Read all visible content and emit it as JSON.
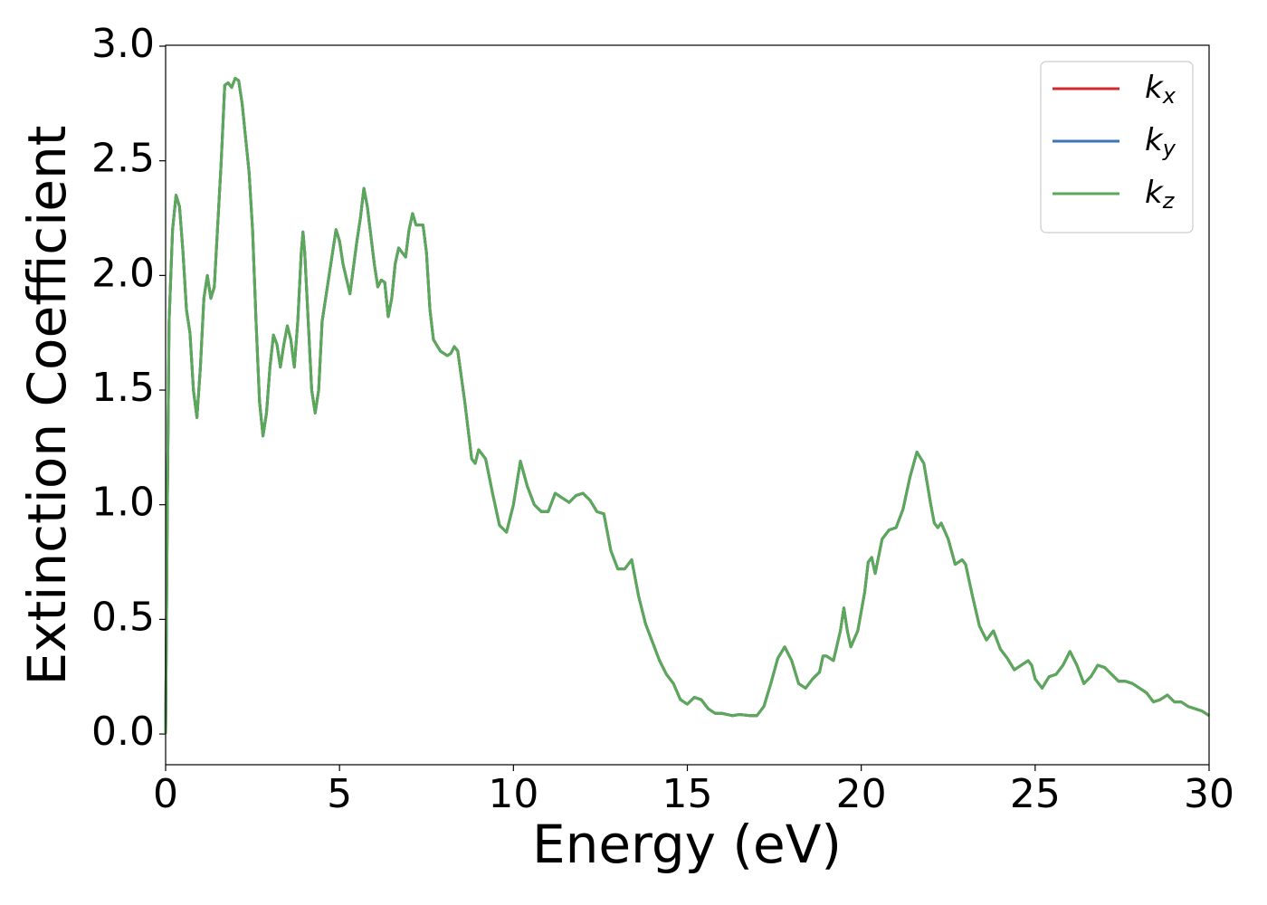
{
  "chart_data": {
    "type": "line",
    "xlabel": "Energy (eV)",
    "ylabel": "Extinction Coefficient",
    "xlim": [
      0,
      30
    ],
    "ylim": [
      -0.134,
      3.004
    ],
    "xticks": [
      0,
      5,
      10,
      15,
      20,
      25,
      30
    ],
    "yticks": [
      {
        "value": 0,
        "label": "0.0"
      },
      0.5,
      {
        "value": 1,
        "label": "1.0"
      },
      1.5,
      {
        "value": 2,
        "label": "2.0"
      },
      2.5,
      {
        "value": 3,
        "label": "3.0"
      }
    ],
    "legend": "upper right",
    "x": [
      0,
      0.05,
      0.1,
      0.2,
      0.3,
      0.4,
      0.5,
      0.6,
      0.7,
      0.8,
      0.9,
      1.0,
      1.1,
      1.2,
      1.3,
      1.4,
      1.6,
      1.7,
      1.8,
      1.9,
      2.0,
      2.1,
      2.2,
      2.4,
      2.5,
      2.6,
      2.7,
      2.8,
      2.9,
      3.0,
      3.1,
      3.2,
      3.3,
      3.4,
      3.5,
      3.6,
      3.7,
      3.8,
      3.9,
      3.95,
      4.0,
      4.1,
      4.2,
      4.3,
      4.4,
      4.5,
      4.7,
      4.9,
      5.0,
      5.1,
      5.3,
      5.5,
      5.6,
      5.7,
      5.8,
      6.0,
      6.1,
      6.2,
      6.3,
      6.4,
      6.5,
      6.6,
      6.7,
      6.8,
      6.9,
      7.0,
      7.1,
      7.2,
      7.4,
      7.5,
      7.6,
      7.7,
      7.9,
      8.1,
      8.2,
      8.3,
      8.4,
      8.6,
      8.8,
      8.9,
      9.0,
      9.2,
      9.4,
      9.6,
      9.8,
      10.0,
      10.2,
      10.4,
      10.6,
      10.8,
      11.0,
      11.2,
      11.4,
      11.6,
      11.8,
      12.0,
      12.2,
      12.4,
      12.6,
      12.8,
      13.0,
      13.2,
      13.4,
      13.6,
      13.8,
      14.0,
      14.2,
      14.4,
      14.6,
      14.8,
      15.0,
      15.2,
      15.4,
      15.6,
      15.8,
      16.0,
      16.3,
      16.5,
      16.8,
      17.0,
      17.2,
      17.4,
      17.6,
      17.8,
      18.0,
      18.2,
      18.4,
      18.6,
      18.8,
      18.9,
      19.0,
      19.2,
      19.4,
      19.5,
      19.6,
      19.7,
      19.9,
      20.1,
      20.2,
      20.3,
      20.4,
      20.6,
      20.8,
      21.0,
      21.2,
      21.4,
      21.6,
      21.8,
      22.0,
      22.1,
      22.2,
      22.3,
      22.5,
      22.7,
      22.9,
      23.0,
      23.2,
      23.4,
      23.6,
      23.8,
      24.0,
      24.2,
      24.4,
      24.6,
      24.8,
      24.9,
      25.0,
      25.2,
      25.4,
      25.6,
      25.8,
      26.0,
      26.2,
      26.4,
      26.6,
      26.8,
      27.0,
      27.2,
      27.4,
      27.6,
      27.8,
      28.0,
      28.2,
      28.4,
      28.6,
      28.8,
      29.0,
      29.2,
      29.4,
      29.6,
      29.8,
      30.0
    ],
    "series": [
      {
        "name": "kx",
        "color": "#d62728",
        "values": [
          0,
          1.0,
          1.8,
          2.2,
          2.35,
          2.3,
          2.1,
          1.85,
          1.75,
          1.5,
          1.38,
          1.6,
          1.9,
          2.0,
          1.9,
          1.95,
          2.5,
          2.83,
          2.84,
          2.82,
          2.86,
          2.85,
          2.75,
          2.45,
          2.2,
          1.8,
          1.45,
          1.3,
          1.4,
          1.6,
          1.74,
          1.7,
          1.6,
          1.7,
          1.78,
          1.72,
          1.6,
          1.8,
          2.1,
          2.19,
          2.1,
          1.8,
          1.5,
          1.4,
          1.5,
          1.8,
          2.0,
          2.2,
          2.15,
          2.05,
          1.92,
          2.15,
          2.25,
          2.38,
          2.3,
          2.05,
          1.95,
          1.98,
          1.97,
          1.82,
          1.9,
          2.05,
          2.12,
          2.1,
          2.08,
          2.2,
          2.27,
          2.22,
          2.22,
          2.1,
          1.85,
          1.72,
          1.67,
          1.65,
          1.66,
          1.69,
          1.67,
          1.45,
          1.2,
          1.18,
          1.24,
          1.2,
          1.05,
          0.91,
          0.88,
          1.0,
          1.19,
          1.08,
          1.0,
          0.97,
          0.97,
          1.05,
          1.03,
          1.01,
          1.04,
          1.05,
          1.02,
          0.97,
          0.96,
          0.8,
          0.72,
          0.72,
          0.76,
          0.6,
          0.48,
          0.4,
          0.32,
          0.26,
          0.22,
          0.15,
          0.13,
          0.16,
          0.15,
          0.11,
          0.09,
          0.09,
          0.08,
          0.085,
          0.08,
          0.08,
          0.12,
          0.22,
          0.33,
          0.38,
          0.32,
          0.22,
          0.2,
          0.24,
          0.27,
          0.34,
          0.34,
          0.32,
          0.45,
          0.55,
          0.45,
          0.38,
          0.45,
          0.62,
          0.75,
          0.77,
          0.7,
          0.85,
          0.89,
          0.9,
          0.98,
          1.12,
          1.23,
          1.18,
          1.0,
          0.92,
          0.9,
          0.92,
          0.85,
          0.74,
          0.76,
          0.74,
          0.6,
          0.47,
          0.41,
          0.45,
          0.37,
          0.33,
          0.28,
          0.3,
          0.32,
          0.3,
          0.24,
          0.2,
          0.25,
          0.26,
          0.3,
          0.36,
          0.3,
          0.22,
          0.25,
          0.3,
          0.29,
          0.26,
          0.23,
          0.23,
          0.22,
          0.2,
          0.18,
          0.14,
          0.15,
          0.17,
          0.14,
          0.14,
          0.12,
          0.11,
          0.1,
          0.08
        ]
      },
      {
        "name": "ky",
        "color": "#3b75af",
        "values": [
          0,
          1.0,
          1.8,
          2.2,
          2.35,
          2.3,
          2.1,
          1.85,
          1.75,
          1.5,
          1.38,
          1.6,
          1.9,
          2.0,
          1.9,
          1.95,
          2.5,
          2.83,
          2.84,
          2.82,
          2.86,
          2.85,
          2.75,
          2.45,
          2.2,
          1.8,
          1.45,
          1.3,
          1.4,
          1.6,
          1.74,
          1.7,
          1.6,
          1.7,
          1.78,
          1.72,
          1.6,
          1.8,
          2.1,
          2.19,
          2.1,
          1.8,
          1.5,
          1.4,
          1.5,
          1.8,
          2.0,
          2.2,
          2.15,
          2.05,
          1.92,
          2.15,
          2.25,
          2.38,
          2.3,
          2.05,
          1.95,
          1.98,
          1.97,
          1.82,
          1.9,
          2.05,
          2.12,
          2.1,
          2.08,
          2.2,
          2.27,
          2.22,
          2.22,
          2.1,
          1.85,
          1.72,
          1.67,
          1.65,
          1.66,
          1.69,
          1.67,
          1.45,
          1.2,
          1.18,
          1.24,
          1.2,
          1.05,
          0.91,
          0.88,
          1.0,
          1.19,
          1.08,
          1.0,
          0.97,
          0.97,
          1.05,
          1.03,
          1.01,
          1.04,
          1.05,
          1.02,
          0.97,
          0.96,
          0.8,
          0.72,
          0.72,
          0.76,
          0.6,
          0.48,
          0.4,
          0.32,
          0.26,
          0.22,
          0.15,
          0.13,
          0.16,
          0.15,
          0.11,
          0.09,
          0.09,
          0.08,
          0.085,
          0.08,
          0.08,
          0.12,
          0.22,
          0.33,
          0.38,
          0.32,
          0.22,
          0.2,
          0.24,
          0.27,
          0.34,
          0.34,
          0.32,
          0.45,
          0.55,
          0.45,
          0.38,
          0.45,
          0.62,
          0.75,
          0.77,
          0.7,
          0.85,
          0.89,
          0.9,
          0.98,
          1.12,
          1.23,
          1.18,
          1.0,
          0.92,
          0.9,
          0.92,
          0.85,
          0.74,
          0.76,
          0.74,
          0.6,
          0.47,
          0.41,
          0.45,
          0.37,
          0.33,
          0.28,
          0.3,
          0.32,
          0.3,
          0.24,
          0.2,
          0.25,
          0.26,
          0.3,
          0.36,
          0.3,
          0.22,
          0.25,
          0.3,
          0.29,
          0.26,
          0.23,
          0.23,
          0.22,
          0.2,
          0.18,
          0.14,
          0.15,
          0.17,
          0.14,
          0.14,
          0.12,
          0.11,
          0.1,
          0.08
        ]
      },
      {
        "name": "kz",
        "color": "#5aa95a",
        "values": [
          0,
          1.0,
          1.8,
          2.2,
          2.35,
          2.3,
          2.1,
          1.85,
          1.75,
          1.5,
          1.38,
          1.6,
          1.9,
          2.0,
          1.9,
          1.95,
          2.5,
          2.83,
          2.84,
          2.82,
          2.86,
          2.85,
          2.75,
          2.45,
          2.2,
          1.8,
          1.45,
          1.3,
          1.4,
          1.6,
          1.74,
          1.7,
          1.6,
          1.7,
          1.78,
          1.72,
          1.6,
          1.8,
          2.1,
          2.19,
          2.1,
          1.8,
          1.5,
          1.4,
          1.5,
          1.8,
          2.0,
          2.2,
          2.15,
          2.05,
          1.92,
          2.15,
          2.25,
          2.38,
          2.3,
          2.05,
          1.95,
          1.98,
          1.97,
          1.82,
          1.9,
          2.05,
          2.12,
          2.1,
          2.08,
          2.2,
          2.27,
          2.22,
          2.22,
          2.1,
          1.85,
          1.72,
          1.67,
          1.65,
          1.66,
          1.69,
          1.67,
          1.45,
          1.2,
          1.18,
          1.24,
          1.2,
          1.05,
          0.91,
          0.88,
          1.0,
          1.19,
          1.08,
          1.0,
          0.97,
          0.97,
          1.05,
          1.03,
          1.01,
          1.04,
          1.05,
          1.02,
          0.97,
          0.96,
          0.8,
          0.72,
          0.72,
          0.76,
          0.6,
          0.48,
          0.4,
          0.32,
          0.26,
          0.22,
          0.15,
          0.13,
          0.16,
          0.15,
          0.11,
          0.09,
          0.09,
          0.08,
          0.085,
          0.08,
          0.08,
          0.12,
          0.22,
          0.33,
          0.38,
          0.32,
          0.22,
          0.2,
          0.24,
          0.27,
          0.34,
          0.34,
          0.32,
          0.45,
          0.55,
          0.45,
          0.38,
          0.45,
          0.62,
          0.75,
          0.77,
          0.7,
          0.85,
          0.89,
          0.9,
          0.98,
          1.12,
          1.23,
          1.18,
          1.0,
          0.92,
          0.9,
          0.92,
          0.85,
          0.74,
          0.76,
          0.74,
          0.6,
          0.47,
          0.41,
          0.45,
          0.37,
          0.33,
          0.28,
          0.3,
          0.32,
          0.3,
          0.24,
          0.2,
          0.25,
          0.26,
          0.3,
          0.36,
          0.3,
          0.22,
          0.25,
          0.3,
          0.29,
          0.26,
          0.23,
          0.23,
          0.22,
          0.2,
          0.18,
          0.14,
          0.15,
          0.17,
          0.14,
          0.14,
          0.12,
          0.11,
          0.1,
          0.08
        ]
      }
    ]
  }
}
